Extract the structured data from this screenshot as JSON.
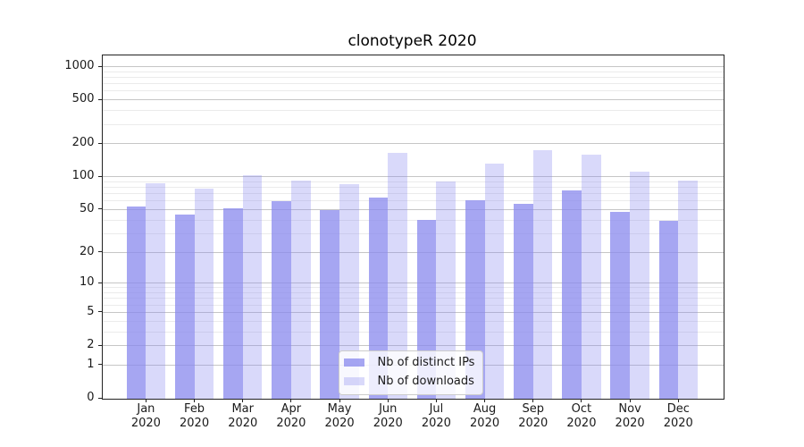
{
  "chart_data": {
    "type": "bar",
    "title": "clonotypeR 2020",
    "categories": [
      "Jan",
      "Feb",
      "Mar",
      "Apr",
      "May",
      "Jun",
      "Jul",
      "Aug",
      "Sep",
      "Oct",
      "Nov",
      "Dec"
    ],
    "category_year": "2020",
    "series": [
      {
        "name": "Nb of distinct IPs",
        "values": [
          53,
          45,
          51,
          60,
          49,
          64,
          40,
          61,
          56,
          75,
          48,
          39
        ],
        "color": "rgba(136,136,238,0.75)"
      },
      {
        "name": "Nb of downloads",
        "values": [
          87,
          78,
          104,
          92,
          85,
          164,
          90,
          133,
          173,
          158,
          112,
          92
        ],
        "color": "rgba(136,136,238,0.32)"
      }
    ],
    "xlabel": "",
    "ylabel": "",
    "yscale": "log1p",
    "ylim": [
      0,
      1270
    ],
    "yticks": [
      0,
      1,
      2,
      5,
      10,
      20,
      50,
      100,
      200,
      500,
      1000
    ],
    "minor_yticks": [
      3,
      4,
      6,
      7,
      8,
      9,
      30,
      40,
      60,
      70,
      80,
      90,
      300,
      400,
      600,
      700,
      800,
      900
    ],
    "grid": true,
    "legend": {
      "position": "lower center",
      "entries": [
        "Nb of distinct IPs",
        "Nb of downloads"
      ]
    },
    "colors": {
      "bar_base": "#8888ee",
      "grid_major": "#c6c6c6",
      "grid_minor": "#ebebeb",
      "text": "#1a1a1a",
      "spine": "#222222"
    }
  }
}
